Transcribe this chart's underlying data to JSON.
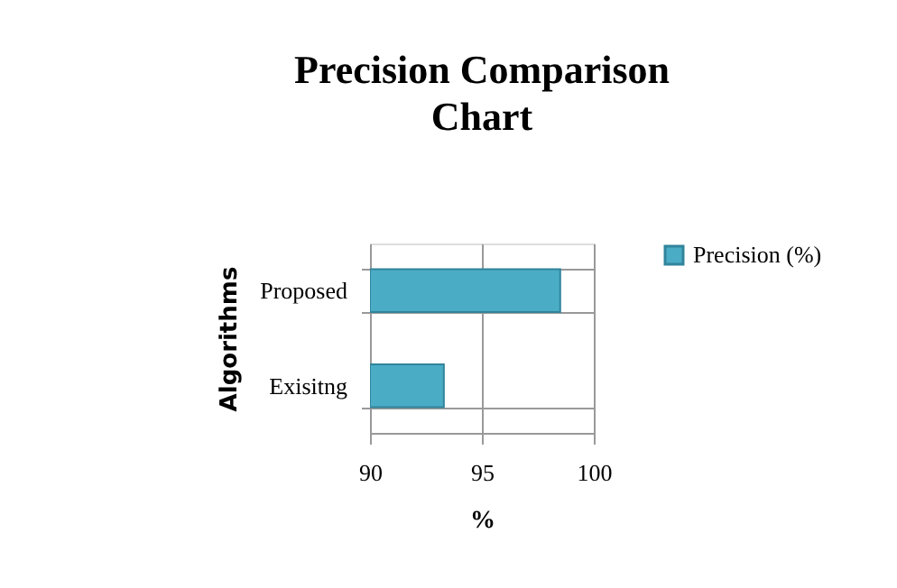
{
  "chart_data": {
    "type": "bar",
    "orientation": "horizontal",
    "title": "Precision Comparison Chart",
    "xlabel": "%",
    "ylabel": "Algorithms",
    "categories": [
      "Proposed",
      "Exisitng"
    ],
    "series": [
      {
        "name": "Precision (%)",
        "color": "#4bacc6",
        "values": [
          98.5,
          93.3
        ]
      }
    ],
    "xlim": [
      90,
      100
    ],
    "xticks": [
      90,
      95,
      100
    ],
    "grid": true,
    "legend": "right"
  }
}
